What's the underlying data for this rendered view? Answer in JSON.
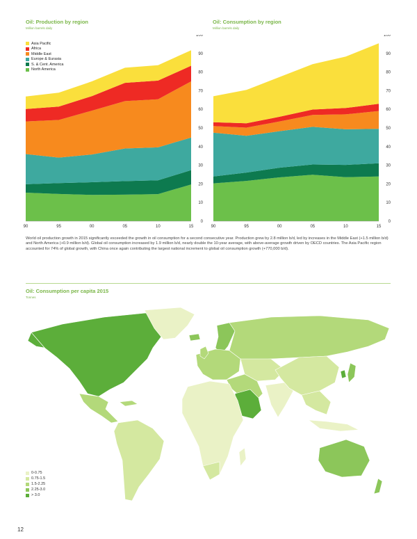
{
  "page_number": "12",
  "body_text": "World oil production growth in 2015 significantly exceeded the growth in oil consumption for a second consecutive year. Production grew by 2.8 million b/d, led by increases in the Middle East (+1.5 million b/d) and North America (+0.9 million b/d). Global oil consumption increased by 1.9 million b/d, nearly double the 10-year average, with above-average growth driven by OECD countries. The Asia Pacific region accounted for 74% of global growth, with China once again contributing the largest national increment to global oil consumption growth (+770,000 b/d).",
  "colors": {
    "asia_pacific": "#fadf3c",
    "africa": "#ee2a24",
    "middle_east": "#f78a1e",
    "europe_eurasia": "#3ea99f",
    "sc_america": "#0d7a4f",
    "north_america": "#6cc04a",
    "accent": "#7ab648"
  },
  "chart_data": [
    {
      "type": "area",
      "stacked": true,
      "title": "Oil: Production by region",
      "subtitle": "Million barrels daily",
      "x": [
        1990,
        1995,
        2000,
        2005,
        2010,
        2015
      ],
      "x_tick_labels": [
        "90",
        "95",
        "00",
        "05",
        "10",
        "15"
      ],
      "y_ticks": [
        0,
        10,
        20,
        30,
        40,
        50,
        60,
        70,
        80,
        90,
        100
      ],
      "ylim": [
        0,
        100
      ],
      "legend_position": "top-left",
      "series": [
        {
          "name": "North America",
          "values": [
            15.3,
            14.6,
            14.1,
            14.2,
            14.5,
            19.7
          ]
        },
        {
          "name": "S. & Cent. America",
          "values": [
            4.5,
            5.8,
            6.8,
            7.3,
            7.4,
            7.7
          ]
        },
        {
          "name": "Europe & Eurasia",
          "values": [
            16.2,
            13.7,
            14.9,
            17.5,
            17.7,
            17.5
          ]
        },
        {
          "name": "Middle East",
          "values": [
            17.5,
            20.2,
            23.5,
            25.4,
            25.8,
            30.1
          ]
        },
        {
          "name": "Africa",
          "values": [
            6.7,
            7.2,
            7.8,
            9.8,
            10.0,
            8.4
          ]
        },
        {
          "name": "Asia Pacific",
          "values": [
            6.7,
            7.4,
            7.9,
            8.1,
            8.3,
            8.3
          ]
        }
      ]
    },
    {
      "type": "area",
      "stacked": true,
      "title": "Oil: Consumption by region",
      "subtitle": "Million barrels daily",
      "x": [
        1990,
        1995,
        2000,
        2005,
        2010,
        2015
      ],
      "x_tick_labels": [
        "90",
        "95",
        "00",
        "05",
        "10",
        "15"
      ],
      "y_ticks": [
        0,
        10,
        20,
        30,
        40,
        50,
        60,
        70,
        80,
        90,
        100
      ],
      "ylim": [
        0,
        100
      ],
      "series": [
        {
          "name": "North America",
          "values": [
            20.3,
            21.6,
            23.5,
            24.9,
            23.6,
            24.0
          ]
        },
        {
          "name": "S. & Cent. America",
          "values": [
            3.7,
            4.5,
            5.2,
            5.5,
            6.6,
            7.1
          ]
        },
        {
          "name": "Europe & Eurasia",
          "values": [
            23.5,
            19.7,
            19.6,
            20.2,
            19.1,
            18.4
          ]
        },
        {
          "name": "Middle East",
          "values": [
            3.5,
            4.4,
            5.2,
            6.4,
            8.0,
            9.6
          ]
        },
        {
          "name": "Africa",
          "values": [
            2.1,
            2.3,
            2.5,
            2.9,
            3.4,
            3.9
          ]
        },
        {
          "name": "Asia Pacific",
          "values": [
            13.9,
            17.9,
            21.3,
            24.3,
            27.6,
            32.4
          ]
        }
      ]
    }
  ],
  "map": {
    "title": "Oil: Consumption per capita 2015",
    "subtitle": "Tonnes",
    "legend": [
      {
        "label": "0-0.75",
        "color": "#eaf2c6"
      },
      {
        "label": "0.75-1.5",
        "color": "#d4e8a0"
      },
      {
        "label": "1.5-2.25",
        "color": "#b3d97a"
      },
      {
        "label": "2.25-3.0",
        "color": "#8cc65a"
      },
      {
        "label": "> 3.0",
        "color": "#5cae3a"
      }
    ]
  }
}
